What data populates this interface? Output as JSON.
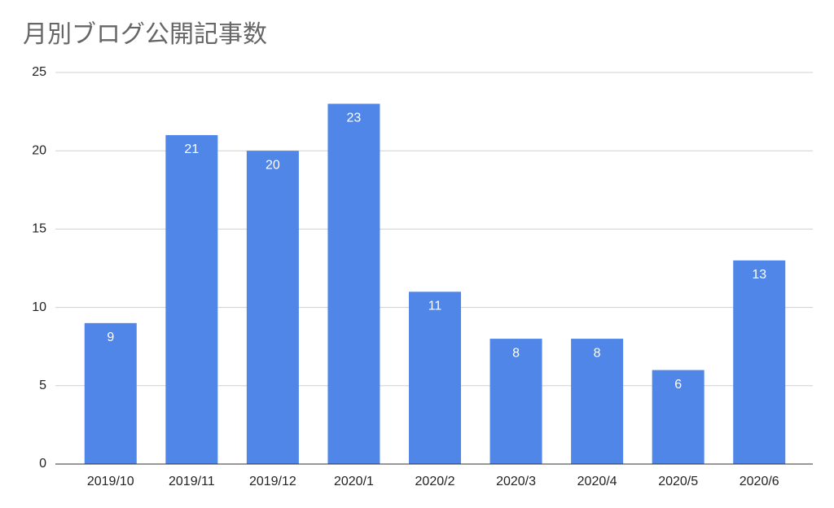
{
  "chart_data": {
    "type": "bar",
    "title": "月別ブログ公開記事数",
    "categories": [
      "2019/10",
      "2019/11",
      "2019/12",
      "2020/1",
      "2020/2",
      "2020/3",
      "2020/4",
      "2020/5",
      "2020/6"
    ],
    "values": [
      9,
      21,
      20,
      23,
      11,
      8,
      8,
      6,
      13
    ],
    "color": "#4f86e8",
    "ylim": [
      0,
      25
    ],
    "yticks": [
      0,
      5,
      10,
      15,
      20,
      25
    ],
    "grid": true,
    "data_labels": true
  }
}
